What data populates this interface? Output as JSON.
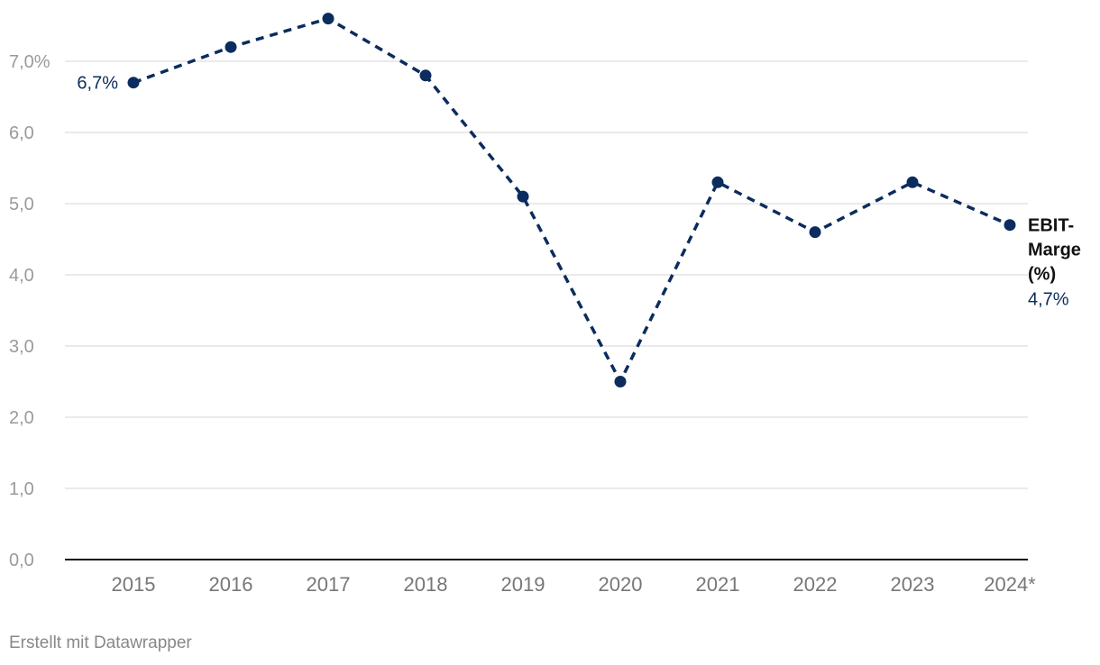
{
  "chart_data": {
    "type": "line",
    "categories": [
      "2015",
      "2016",
      "2017",
      "2018",
      "2019",
      "2020",
      "2021",
      "2022",
      "2023",
      "2024*"
    ],
    "series": [
      {
        "name": "EBIT-Marge (%)",
        "values": [
          6.7,
          7.2,
          7.6,
          6.8,
          5.1,
          2.5,
          5.3,
          4.6,
          5.3,
          4.7
        ]
      }
    ],
    "y_ticks": [
      "0,0",
      "1,0",
      "2,0",
      "3,0",
      "4,0",
      "5,0",
      "6,0",
      "7,0%"
    ],
    "ylim": [
      0,
      7.6
    ],
    "grid": true,
    "line_style": "dashed",
    "start_label": "6,7%",
    "end_label": {
      "name_lines": [
        "EBIT-",
        "Marge",
        "(%)"
      ],
      "value": "4,7%"
    },
    "colors": {
      "series": "#0b2c5e",
      "grid": "#e3e3e3",
      "axis": "#111111",
      "tick_text": "#9a9a9a",
      "category_text": "#777777",
      "end_label_name": "#111111"
    }
  },
  "footer": {
    "credit": "Erstellt mit Datawrapper"
  }
}
